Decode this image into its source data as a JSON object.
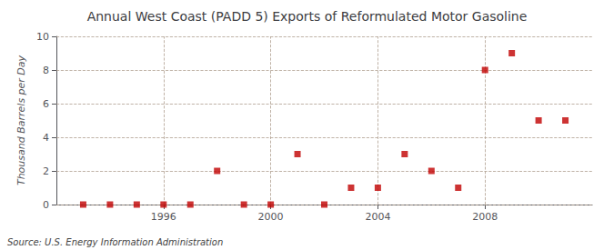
{
  "chart_data": {
    "type": "scatter",
    "title": "Annual West Coast (PADD 5) Exports of Reformulated Motor Gasoline",
    "ylabel": "Thousand Barrels per Day",
    "annotations": [
      "Source: U.S. Energy Information Administration"
    ],
    "x": [
      1993,
      1994,
      1995,
      1996,
      1997,
      1998,
      1999,
      2000,
      2001,
      2002,
      2003,
      2004,
      2005,
      2006,
      2007,
      2008,
      2009,
      2010,
      2011
    ],
    "values": [
      0,
      0,
      0,
      0,
      0,
      2,
      0,
      0,
      3,
      0,
      1,
      1,
      3,
      2,
      1,
      8,
      9,
      5,
      5
    ],
    "color": "#c00000",
    "marker": "square",
    "xlim": [
      1992.0,
      2012.0
    ],
    "xticks": [
      1996,
      2000,
      2004,
      2008
    ],
    "ylim": [
      0,
      10
    ],
    "yticks": [
      0,
      2,
      4,
      6,
      8,
      10
    ],
    "grid": true
  }
}
